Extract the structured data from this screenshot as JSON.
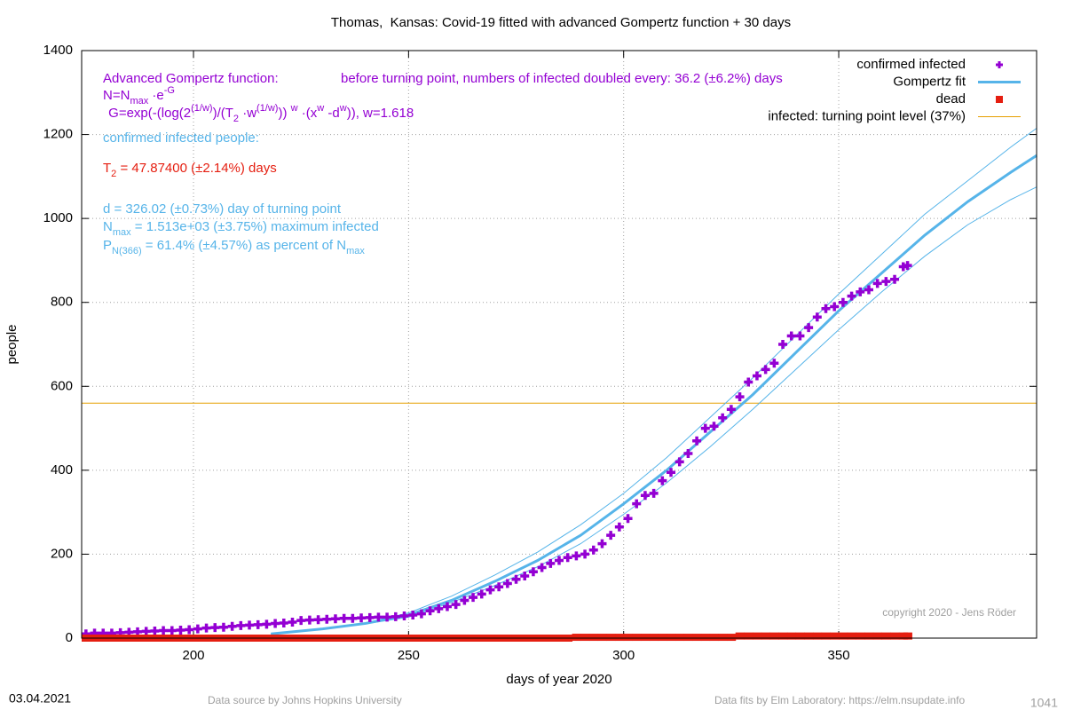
{
  "chart_data": {
    "type": "line",
    "title": "Thomas,  Kansas: Covid-19 fitted with advanced Gompertz function + 30 days",
    "xlabel": "days of year 2020",
    "ylabel": "people",
    "xlim": [
      174,
      396
    ],
    "ylim": [
      0,
      1400
    ],
    "xticks": [
      200,
      250,
      300,
      350
    ],
    "yticks": [
      0,
      200,
      400,
      600,
      800,
      1000,
      1200,
      1400
    ],
    "grid": true,
    "legend": "top-right",
    "series": [
      {
        "name": "confirmed infected",
        "style": "plus",
        "color": "#9400d3",
        "x": [
          175,
          177,
          179,
          181,
          183,
          185,
          187,
          189,
          191,
          193,
          195,
          197,
          199,
          201,
          203,
          205,
          207,
          209,
          211,
          213,
          215,
          217,
          219,
          221,
          223,
          225,
          227,
          229,
          231,
          233,
          235,
          237,
          239,
          241,
          243,
          245,
          247,
          249,
          251,
          253,
          255,
          257,
          259,
          261,
          263,
          265,
          267,
          269,
          271,
          273,
          275,
          277,
          279,
          281,
          283,
          285,
          287,
          289,
          291,
          293,
          295,
          297,
          299,
          301,
          303,
          305,
          307,
          309,
          311,
          313,
          315,
          317,
          319,
          321,
          323,
          325,
          327,
          329,
          331,
          333,
          335,
          337,
          339,
          341,
          343,
          345,
          347,
          349,
          351,
          353,
          355,
          357,
          359,
          361,
          363,
          365,
          366
        ],
        "values": [
          10,
          12,
          12,
          12,
          13,
          14,
          15,
          16,
          17,
          18,
          18,
          19,
          20,
          22,
          24,
          25,
          26,
          28,
          30,
          31,
          32,
          33,
          35,
          36,
          38,
          42,
          43,
          44,
          45,
          46,
          47,
          47,
          48,
          49,
          50,
          50,
          51,
          53,
          55,
          58,
          65,
          70,
          75,
          80,
          90,
          97,
          105,
          115,
          122,
          130,
          140,
          148,
          158,
          168,
          178,
          185,
          192,
          196,
          200,
          210,
          225,
          245,
          265,
          285,
          320,
          340,
          345,
          375,
          395,
          420,
          440,
          470,
          500,
          505,
          525,
          545,
          575,
          610,
          625,
          640,
          655,
          700,
          720,
          720,
          740,
          765,
          785,
          790,
          800,
          815,
          825,
          830,
          845,
          850,
          855,
          885,
          888
        ]
      },
      {
        "name": "Gompertz fit",
        "style": "line",
        "color": "#56b4e9",
        "x": [
          218,
          230,
          240,
          250,
          260,
          270,
          280,
          290,
          300,
          310,
          320,
          330,
          340,
          350,
          360,
          370,
          380,
          390,
          396
        ],
        "values": [
          10,
          22,
          35,
          55,
          90,
          135,
          185,
          245,
          320,
          400,
          490,
          580,
          680,
          780,
          870,
          960,
          1040,
          1110,
          1150
        ],
        "upper": [
          10,
          22,
          36,
          60,
          100,
          150,
          205,
          270,
          345,
          430,
          525,
          620,
          720,
          820,
          915,
          1010,
          1090,
          1170,
          1215
        ],
        "lower": [
          10,
          22,
          34,
          50,
          85,
          125,
          170,
          225,
          295,
          370,
          455,
          545,
          640,
          735,
          825,
          910,
          985,
          1045,
          1075
        ]
      },
      {
        "name": "dead",
        "style": "square",
        "color": "#e51e10",
        "x": [
          175,
          177,
          179,
          181,
          183,
          185,
          187,
          189,
          191,
          193,
          195,
          197,
          199,
          201,
          203,
          205,
          207,
          209,
          211,
          213,
          215,
          217,
          219,
          221,
          223,
          225,
          227,
          229,
          231,
          233,
          235,
          237,
          239,
          241,
          243,
          245,
          247,
          249,
          251,
          253,
          255,
          257,
          259,
          261,
          263,
          265,
          267,
          269,
          271,
          273,
          275,
          277,
          279,
          281,
          283,
          285,
          287,
          289,
          291,
          293,
          295,
          297,
          299,
          301,
          303,
          305,
          307,
          309,
          311,
          313,
          315,
          317,
          319,
          321,
          323,
          325,
          327,
          329,
          331,
          333,
          335,
          337,
          339,
          341,
          343,
          345,
          347,
          349,
          351,
          353,
          355,
          357,
          359,
          361,
          363,
          365,
          366
        ],
        "values": [
          0,
          0,
          0,
          0,
          0,
          0,
          0,
          0,
          0,
          0,
          0,
          0,
          0,
          0,
          0,
          0,
          0,
          0,
          0,
          0,
          0,
          0,
          0,
          0,
          0,
          0,
          0,
          0,
          0,
          0,
          0,
          0,
          0,
          0,
          0,
          0,
          0,
          0,
          0,
          0,
          0,
          0,
          0,
          0,
          0,
          0,
          0,
          0,
          0,
          0,
          0,
          0,
          0,
          0,
          0,
          0,
          0,
          2,
          2,
          2,
          2,
          2,
          2,
          2,
          2,
          2,
          2,
          2,
          2,
          2,
          2,
          2,
          2,
          2,
          2,
          2,
          5,
          5,
          5,
          5,
          5,
          5,
          5,
          5,
          5,
          5,
          5,
          5,
          5,
          5,
          5,
          5,
          5,
          5,
          5,
          5,
          5
        ]
      },
      {
        "name": "infected: turning point level (37%)",
        "style": "hline",
        "color": "#e69f00",
        "values": [
          560
        ]
      }
    ],
    "annotations": [
      {
        "color": "#9400d3",
        "segments": [
          {
            "text": "Advanced Gompertz function:"
          }
        ]
      },
      {
        "color": "#9400d3",
        "segments": [
          {
            "text": "N=N"
          },
          {
            "text": "max",
            "shift": "sub"
          },
          {
            "text": " ·e"
          },
          {
            "text": "-G",
            "shift": "sup"
          }
        ]
      },
      {
        "color": "#9400d3",
        "segments": [
          {
            "text": " G=exp(-(log(2"
          },
          {
            "text": "(1/w)",
            "shift": "sup"
          },
          {
            "text": ")/(T"
          },
          {
            "text": "2",
            "shift": "sub"
          },
          {
            "text": " ·w"
          },
          {
            "text": "(1/w)",
            "shift": "sup"
          },
          {
            "text": ")) "
          },
          {
            "text": "w",
            "shift": "sup"
          },
          {
            "text": " ·(x"
          },
          {
            "text": "w",
            "shift": "sup"
          },
          {
            "text": " -d"
          },
          {
            "text": "w",
            "shift": "sup"
          },
          {
            "text": ")), w=1.618"
          }
        ]
      },
      {
        "color": "#9400d3",
        "segments": [
          {
            "text": "before turning point, numbers of infected doubled every: 36.2 (±6.2%) days"
          }
        ]
      },
      {
        "color": "#56b4e9",
        "segments": [
          {
            "text": "confirmed infected people:"
          }
        ]
      },
      {
        "color": "#e51e10",
        "segments": [
          {
            "text": "T"
          },
          {
            "text": "2",
            "shift": "sub"
          },
          {
            "text": " = 47.87400 (±2.14%) days"
          }
        ]
      },
      {
        "color": "#56b4e9",
        "segments": [
          {
            "text": "d = 326.02 (±0.73%) day of turning point"
          }
        ]
      },
      {
        "color": "#56b4e9",
        "segments": [
          {
            "text": "N"
          },
          {
            "text": "max",
            "shift": "sub"
          },
          {
            "text": " = 1.513e+03 (±3.75%) maximum infected"
          }
        ]
      },
      {
        "color": "#56b4e9",
        "segments": [
          {
            "text": "P"
          },
          {
            "text": "N(366)",
            "shift": "sub"
          },
          {
            "text": " = 61.4% (±4.57%) as percent of N"
          },
          {
            "text": "max",
            "shift": "sub"
          }
        ]
      }
    ],
    "copyright": "copyright 2020 - Jens Röder",
    "footer": {
      "date": "03.04.2021",
      "source": "Data source by Johns Hopkins University",
      "fits": "Data fits by Elm Laboratory: https://elm.nsupdate.info",
      "number": "1041"
    }
  }
}
